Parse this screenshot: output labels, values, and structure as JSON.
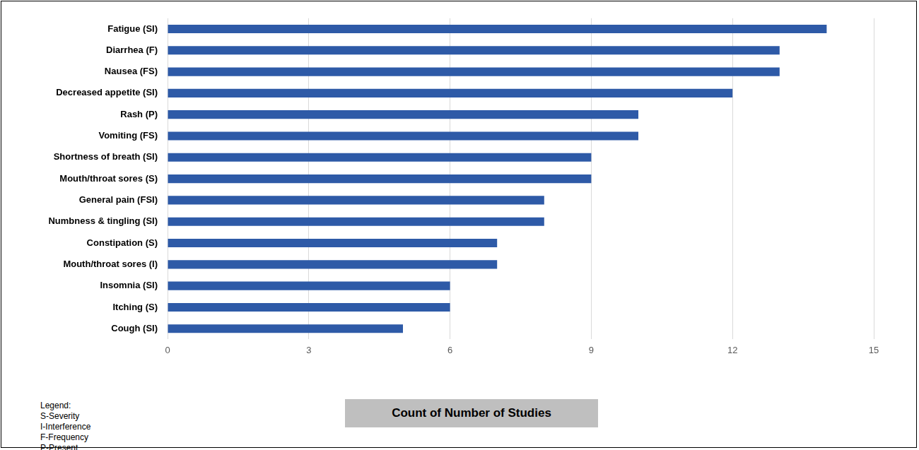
{
  "chart_data": {
    "type": "bar",
    "orientation": "horizontal",
    "categories": [
      "Fatigue (SI)",
      "Diarrhea (F)",
      "Nausea (FS)",
      "Decreased appetite (SI)",
      "Rash (P)",
      "Vomiting (FS)",
      "Shortness of breath (SI)",
      "Mouth/throat sores (S)",
      "General pain (FSI)",
      "Numbness & tingling (SI)",
      "Constipation (S)",
      "Mouth/throat sores (I)",
      "Insomnia (SI)",
      "Itching (S)",
      "Cough (SI)"
    ],
    "values": [
      14,
      13,
      13,
      12,
      10,
      10,
      9,
      9,
      8,
      8,
      7,
      7,
      6,
      6,
      5
    ],
    "color": "#2e5aa7",
    "x_label": "Count of Number of Studies",
    "xlim": [
      0,
      15
    ],
    "xticks": [
      0,
      3,
      6,
      9,
      12,
      15
    ],
    "grid": true,
    "annotations": [
      "Legend:",
      "S-Severity",
      "I-Interference",
      "F-Frequency",
      "P-Present"
    ]
  }
}
